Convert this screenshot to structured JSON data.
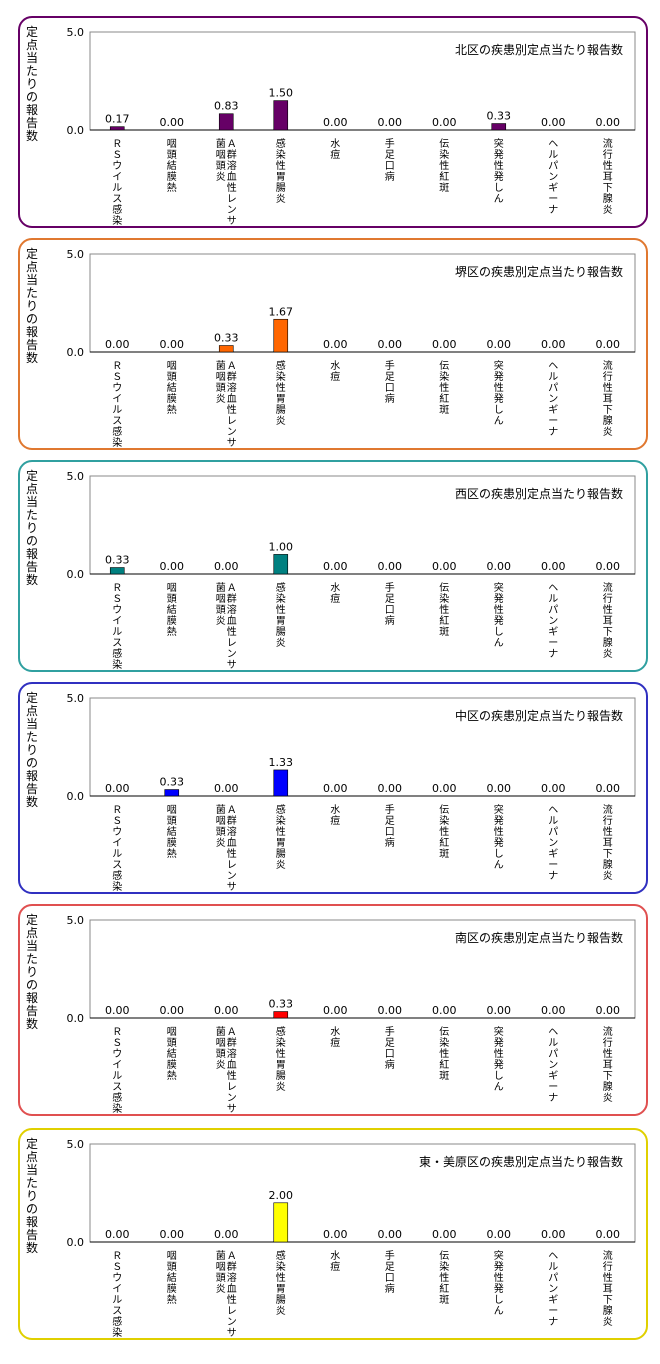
{
  "ylabel": "定点当たりの報告数",
  "categories": [
    "ＲＳウイルス感染症",
    "咽頭結膜熱",
    "Ａ群溶血性レンサ球菌咽頭炎",
    "感染性胃腸炎",
    "水痘",
    "手足口病",
    "伝染性紅斑",
    "突発性発しん",
    "ヘルパンギーナ",
    "流行性耳下腺炎"
  ],
  "chart_data": [
    {
      "type": "bar",
      "title": "北区の疾患別定点当たり報告数",
      "ylim": [
        0,
        5
      ],
      "yticks": [
        "0.0",
        "5.0"
      ],
      "color": "#660066",
      "values": [
        0.17,
        0,
        0.83,
        1.5,
        0,
        0,
        0,
        0.33,
        0,
        0
      ],
      "labels": [
        "0.17",
        "0.00",
        "0.83",
        "1.50",
        "0.00",
        "0.00",
        "0.00",
        "0.33",
        "0.00",
        "0.00"
      ]
    },
    {
      "type": "bar",
      "title": "堺区の疾患別定点当たり報告数",
      "ylim": [
        0,
        5
      ],
      "yticks": [
        "0.0",
        "5.0"
      ],
      "color": "#ff6600",
      "values": [
        0,
        0,
        0.33,
        1.67,
        0,
        0,
        0,
        0,
        0,
        0
      ],
      "labels": [
        "0.00",
        "0.00",
        "0.33",
        "1.67",
        "0.00",
        "0.00",
        "0.00",
        "0.00",
        "0.00",
        "0.00"
      ]
    },
    {
      "type": "bar",
      "title": "西区の疾患別定点当たり報告数",
      "ylim": [
        0,
        5
      ],
      "yticks": [
        "0.0",
        "5.0"
      ],
      "color": "#008080",
      "values": [
        0.33,
        0,
        0,
        1.0,
        0,
        0,
        0,
        0,
        0,
        0
      ],
      "labels": [
        "0.33",
        "0.00",
        "0.00",
        "1.00",
        "0.00",
        "0.00",
        "0.00",
        "0.00",
        "0.00",
        "0.00"
      ]
    },
    {
      "type": "bar",
      "title": "中区の疾患別定点当たり報告数",
      "ylim": [
        0,
        5
      ],
      "yticks": [
        "0.0",
        "5.0"
      ],
      "color": "#0000ff",
      "values": [
        0,
        0.33,
        0,
        1.33,
        0,
        0,
        0,
        0,
        0,
        0
      ],
      "labels": [
        "0.00",
        "0.33",
        "0.00",
        "1.33",
        "0.00",
        "0.00",
        "0.00",
        "0.00",
        "0.00",
        "0.00"
      ]
    },
    {
      "type": "bar",
      "title": "南区の疾患別定点当たり報告数",
      "ylim": [
        0,
        5
      ],
      "yticks": [
        "0.0",
        "5.0"
      ],
      "color": "#ff0000",
      "values": [
        0,
        0,
        0,
        0.33,
        0,
        0,
        0,
        0,
        0,
        0
      ],
      "labels": [
        "0.00",
        "0.00",
        "0.00",
        "0.33",
        "0.00",
        "0.00",
        "0.00",
        "0.00",
        "0.00",
        "0.00"
      ]
    },
    {
      "type": "bar",
      "title": "東・美原区の疾患別定点当たり報告数",
      "ylim": [
        0,
        5
      ],
      "yticks": [
        "0.0",
        "5.0"
      ],
      "color": "#ffff00",
      "values": [
        0,
        0,
        0,
        2.0,
        0,
        0,
        0,
        0,
        0,
        0
      ],
      "labels": [
        "0.00",
        "0.00",
        "0.00",
        "2.00",
        "0.00",
        "0.00",
        "0.00",
        "0.00",
        "0.00",
        "0.00"
      ]
    }
  ],
  "theme": {
    "borders": [
      "#660066",
      "#e07830",
      "#30a0a0",
      "#3030c0",
      "#e05050",
      "#e0d000"
    ]
  }
}
